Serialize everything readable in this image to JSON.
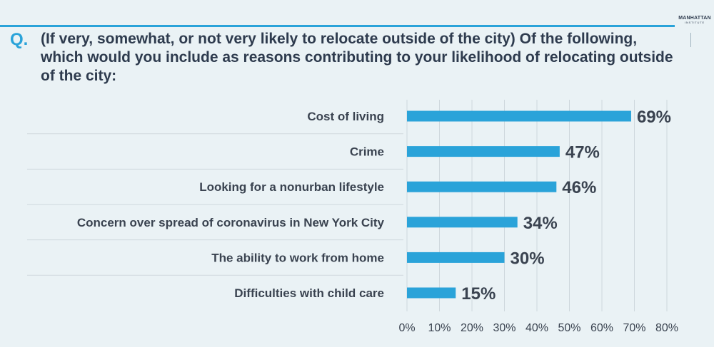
{
  "logo": {
    "line1": "MANHATTAN",
    "line2": "INSTITUTE"
  },
  "question": {
    "prefix": "Q.",
    "text": "(If very, somewhat, or not very likely to relocate outside of the city) Of the following, which would you include as reasons contributing to your likelihood of relocating outside of the city:"
  },
  "colors": {
    "bar": "#2aa3d9",
    "accent": "#2aa3d9",
    "text": "#3a4350",
    "background": "#eaf2f5"
  },
  "chart_data": {
    "type": "bar",
    "orientation": "horizontal",
    "categories": [
      "Cost of living",
      "Crime",
      "Looking for a nonurban lifestyle",
      "Concern over spread of coronavirus in New York City",
      "The ability to work from home",
      "Difficulties with child care"
    ],
    "values": [
      69,
      47,
      46,
      34,
      30,
      15
    ],
    "value_labels": [
      "69%",
      "47%",
      "46%",
      "34%",
      "30%",
      "15%"
    ],
    "xlim": [
      0,
      80
    ],
    "xticks": [
      "0%",
      "10%",
      "20%",
      "30%",
      "40%",
      "50%",
      "60%",
      "70%",
      "80%"
    ],
    "grid": true
  }
}
